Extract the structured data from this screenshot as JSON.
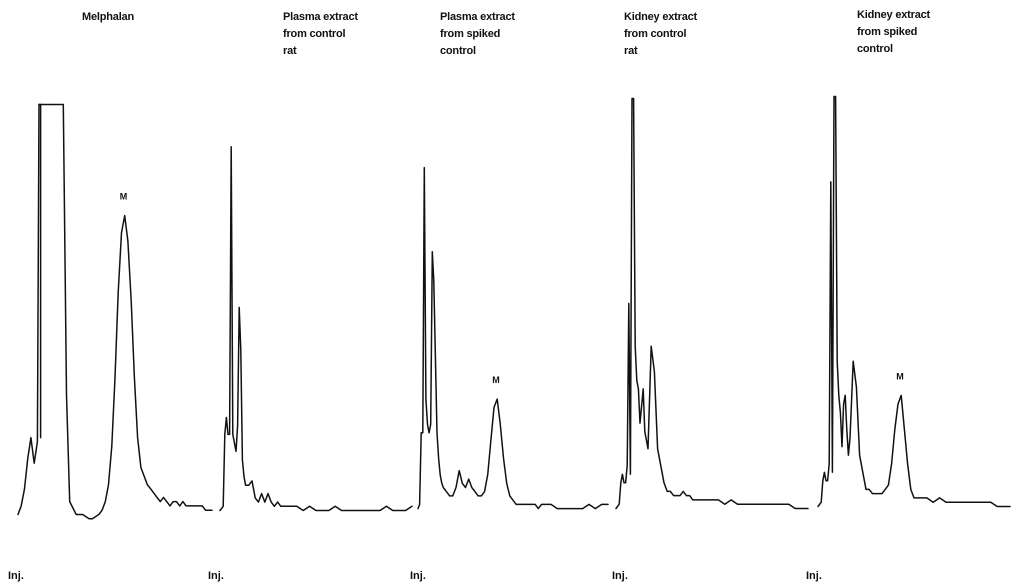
{
  "chart_data": {
    "type": "line",
    "description": "",
    "panels": [
      {
        "title_lines": [
          "Melphalan"
        ],
        "injection_label": "Inj.",
        "peak_label": "M",
        "flat_top_solvent_peak": true,
        "series": {
          "x": [
            0,
            2,
            4,
            6,
            8,
            10,
            12,
            13,
            14,
            16,
            18,
            20,
            22,
            24,
            26,
            28,
            30,
            32,
            36,
            40,
            44,
            46,
            48,
            50,
            52,
            54,
            56,
            58,
            60,
            62,
            64,
            66,
            68,
            70,
            72,
            74,
            76,
            78,
            80,
            82,
            84,
            86,
            88,
            90,
            92,
            94,
            96,
            98,
            100,
            102,
            104,
            106,
            108,
            110,
            112,
            114,
            116,
            118,
            120
          ],
          "y": [
            2,
            4,
            8,
            15,
            20,
            14,
            19,
            98,
            98,
            98,
            98,
            98,
            98,
            98,
            98,
            98,
            30,
            5,
            2,
            2,
            1,
            1,
            1.5,
            2,
            3,
            5,
            9,
            18,
            34,
            54,
            68,
            72,
            66,
            52,
            34,
            20,
            13,
            11,
            9,
            8,
            7,
            6,
            5,
            6,
            5,
            4,
            5,
            5,
            4,
            5,
            4,
            4,
            4,
            4,
            4,
            4,
            3,
            3,
            3
          ]
        }
      },
      {
        "title_lines": [
          "Plasma extract",
          "from control",
          "rat"
        ],
        "injection_label": "Inj.",
        "peak_label": "",
        "flat_top_solvent_peak": false,
        "series": {
          "x": [
            0,
            2,
            3,
            4,
            5,
            6,
            7,
            8,
            9,
            10,
            11,
            12,
            13,
            14,
            15,
            16,
            18,
            20,
            22,
            24,
            26,
            28,
            30,
            32,
            34,
            36,
            38,
            40,
            44,
            48,
            52,
            56,
            60,
            64,
            68,
            72,
            76,
            80,
            84,
            88,
            92,
            96,
            100,
            104,
            108,
            112,
            116,
            120
          ],
          "y": [
            2,
            3,
            20,
            24,
            20,
            20,
            88,
            20,
            18,
            16,
            22,
            50,
            40,
            14,
            10,
            8,
            8,
            9,
            5,
            4,
            6,
            4,
            6,
            4,
            3,
            4,
            3,
            3,
            3,
            3,
            2,
            3,
            2,
            2,
            2,
            3,
            2,
            2,
            2,
            2,
            2,
            2,
            2,
            3,
            2,
            2,
            2,
            3
          ]
        }
      },
      {
        "title_lines": [
          "Plasma extract",
          "from spiked",
          "control"
        ],
        "injection_label": "Inj.",
        "peak_label": "M",
        "flat_top_solvent_peak": false,
        "series": {
          "x": [
            0,
            1,
            2,
            3,
            4,
            5,
            6,
            7,
            8,
            9,
            10,
            11,
            12,
            13,
            14,
            15,
            16,
            18,
            20,
            22,
            24,
            26,
            28,
            30,
            32,
            34,
            36,
            38,
            40,
            42,
            44,
            46,
            48,
            50,
            52,
            54,
            56,
            58,
            60,
            62,
            64,
            66,
            68,
            70,
            72,
            74,
            76,
            78,
            80,
            84,
            88,
            92,
            96,
            100,
            104,
            108,
            112,
            116,
            120
          ],
          "y": [
            2,
            3,
            20,
            20,
            83,
            28,
            22,
            20,
            22,
            63,
            56,
            38,
            20,
            14,
            10,
            8,
            7,
            6,
            5,
            5,
            7,
            11,
            8,
            7,
            9,
            7,
            6,
            5,
            5,
            6,
            10,
            18,
            26,
            28,
            22,
            14,
            8,
            5,
            4,
            3,
            3,
            3,
            3,
            3,
            3,
            3,
            2,
            3,
            3,
            3,
            2,
            2,
            2,
            2,
            2,
            3,
            2,
            3,
            3
          ]
        }
      },
      {
        "title_lines": [
          "Kidney extract",
          "from control",
          "rat"
        ],
        "injection_label": "Inj.",
        "peak_label": "",
        "flat_top_solvent_peak": false,
        "series": {
          "x": [
            0,
            2,
            3,
            4,
            5,
            6,
            7,
            8,
            9,
            10,
            11,
            12,
            13,
            14,
            15,
            16,
            17,
            18,
            19,
            20,
            22,
            24,
            26,
            28,
            30,
            32,
            34,
            36,
            38,
            40,
            42,
            44,
            46,
            48,
            52,
            56,
            60,
            64,
            68,
            72,
            76,
            80,
            84,
            88,
            92,
            96,
            100,
            104,
            108,
            112,
            116,
            120
          ],
          "y": [
            2,
            3,
            8,
            10,
            8,
            8,
            12,
            50,
            10,
            98,
            98,
            40,
            32,
            30,
            22,
            26,
            30,
            20,
            18,
            16,
            40,
            34,
            16,
            12,
            8,
            6,
            6,
            5,
            5,
            5,
            6,
            5,
            5,
            4,
            4,
            4,
            4,
            4,
            3,
            4,
            3,
            3,
            3,
            3,
            3,
            3,
            3,
            3,
            3,
            2,
            2,
            2
          ]
        }
      },
      {
        "title_lines": [
          "Kidney extract",
          "from spiked",
          "control"
        ],
        "injection_label": "Inj.",
        "peak_label": "M",
        "flat_top_solvent_peak": false,
        "series": {
          "x": [
            0,
            2,
            3,
            4,
            5,
            6,
            7,
            8,
            9,
            10,
            11,
            12,
            13,
            14,
            15,
            16,
            17,
            18,
            19,
            20,
            22,
            24,
            26,
            28,
            30,
            32,
            34,
            36,
            38,
            40,
            42,
            44,
            46,
            48,
            50,
            52,
            54,
            56,
            58,
            60,
            64,
            68,
            72,
            76,
            80,
            84,
            88,
            92,
            96,
            100,
            104,
            108,
            112,
            116,
            120
          ],
          "y": [
            2,
            3,
            8,
            10,
            8,
            8,
            12,
            78,
            10,
            98,
            98,
            36,
            28,
            24,
            16,
            26,
            28,
            20,
            14,
            18,
            36,
            30,
            14,
            10,
            6,
            6,
            5,
            5,
            5,
            5,
            6,
            7,
            12,
            20,
            26,
            28,
            20,
            12,
            6,
            4,
            4,
            4,
            3,
            4,
            3,
            3,
            3,
            3,
            3,
            3,
            3,
            3,
            2,
            2,
            2
          ]
        }
      }
    ]
  }
}
